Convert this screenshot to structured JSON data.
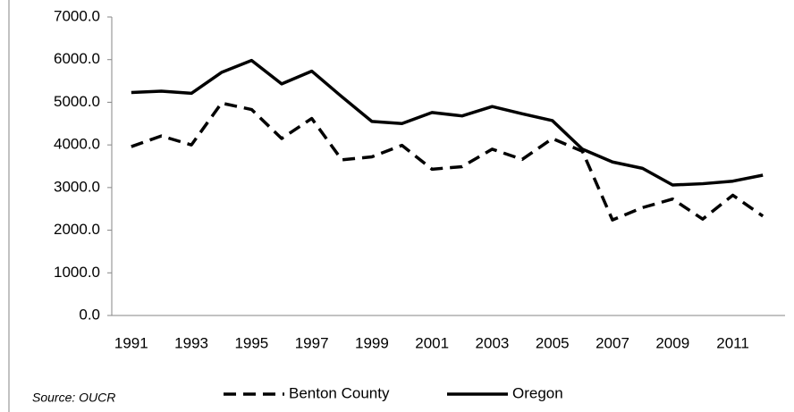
{
  "chart_data": {
    "type": "line",
    "categories": [
      "1991",
      null,
      "1993",
      null,
      "1995",
      null,
      "1997",
      null,
      "1999",
      null,
      "2001",
      null,
      "2003",
      null,
      "2005",
      null,
      "2007",
      null,
      "2009",
      null,
      "2011",
      null
    ],
    "series": [
      {
        "name": "Benton County",
        "color": "#000000",
        "line_style": "dashed",
        "values": [
          3960,
          4210,
          4000,
          4980,
          4830,
          4150,
          4620,
          3650,
          3720,
          3990,
          3430,
          3490,
          3900,
          3660,
          4150,
          3850,
          2240,
          2530,
          2730,
          2260,
          2820,
          2330
        ]
      },
      {
        "name": "Oregon",
        "color": "#000000",
        "line_style": "solid",
        "values": [
          5230,
          5260,
          5210,
          5700,
          5980,
          5430,
          5730,
          5130,
          4550,
          4500,
          4760,
          4680,
          4900,
          4730,
          4570,
          3900,
          3600,
          3450,
          3060,
          3090,
          3150,
          3290
        ]
      }
    ],
    "ylim": [
      0,
      7000
    ],
    "yticks": [
      {
        "value": 0,
        "label": "0.0"
      },
      {
        "value": 1000,
        "label": "1000.0"
      },
      {
        "value": 2000,
        "label": "2000.0"
      },
      {
        "value": 3000,
        "label": "3000.0"
      },
      {
        "value": 4000,
        "label": "4000.0"
      },
      {
        "value": 5000,
        "label": "5000.0"
      },
      {
        "value": 6000,
        "label": "6000.0"
      },
      {
        "value": 7000,
        "label": "7000.0"
      }
    ],
    "grid": false,
    "source": "Source: OUCR",
    "legend": "bottom"
  }
}
